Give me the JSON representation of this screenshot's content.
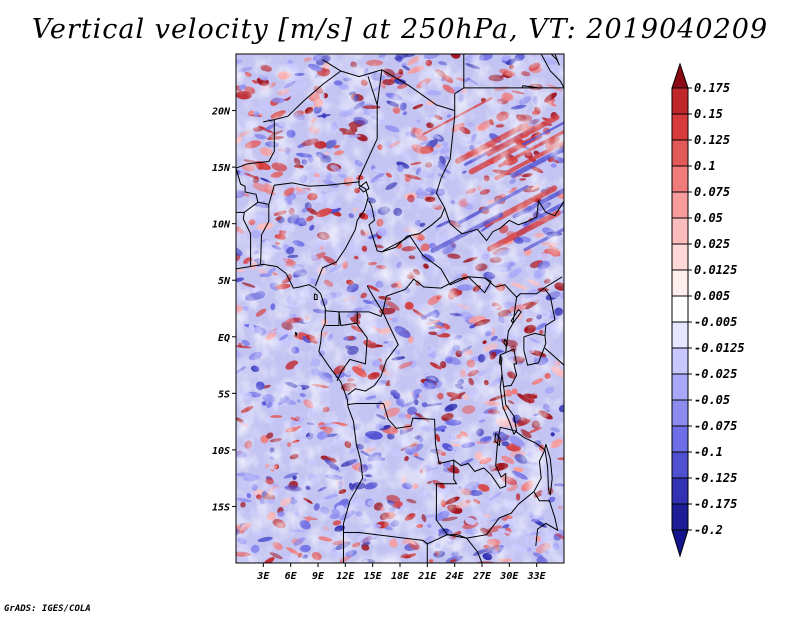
{
  "title": "Vertical velocity [m/s] at 250hPa, VT: 2019040209",
  "credit": "GrADS: IGES/COLA",
  "map": {
    "lat_range": [
      -20,
      25
    ],
    "lon_range": [
      0,
      36
    ],
    "lat_ticks": [
      {
        "value": 20,
        "label": "20N"
      },
      {
        "value": 15,
        "label": "15N"
      },
      {
        "value": 10,
        "label": "10N"
      },
      {
        "value": 5,
        "label": "5N"
      },
      {
        "value": 0,
        "label": "EQ"
      },
      {
        "value": -5,
        "label": "5S"
      },
      {
        "value": -10,
        "label": "10S"
      },
      {
        "value": -15,
        "label": "15S"
      }
    ],
    "lon_ticks": [
      {
        "value": 3,
        "label": "3E"
      },
      {
        "value": 6,
        "label": "6E"
      },
      {
        "value": 9,
        "label": "9E"
      },
      {
        "value": 12,
        "label": "12E"
      },
      {
        "value": 15,
        "label": "15E"
      },
      {
        "value": 18,
        "label": "18E"
      },
      {
        "value": 21,
        "label": "21E"
      },
      {
        "value": 24,
        "label": "24E"
      },
      {
        "value": 27,
        "label": "27E"
      },
      {
        "value": 30,
        "label": "30E"
      },
      {
        "value": 33,
        "label": "33E"
      }
    ]
  },
  "colorbar": {
    "levels": [
      {
        "label": "0.175",
        "color": "#a0141e"
      },
      {
        "label": "0.15",
        "color": "#c0272d"
      },
      {
        "label": "0.125",
        "color": "#d73c3c"
      },
      {
        "label": "0.1",
        "color": "#e45a5a"
      },
      {
        "label": "0.075",
        "color": "#ef7b7b"
      },
      {
        "label": "0.05",
        "color": "#f79c9c"
      },
      {
        "label": "0.025",
        "color": "#fcbcbc"
      },
      {
        "label": "0.0125",
        "color": "#ffd8d8"
      },
      {
        "label": "0.005",
        "color": "#ffeeee"
      },
      {
        "label": "-0.005",
        "color": "#ffffff"
      },
      {
        "label": "-0.0125",
        "color": "#e6e6ff"
      },
      {
        "label": "-0.025",
        "color": "#c8c8ff"
      },
      {
        "label": "-0.05",
        "color": "#a8a8fa"
      },
      {
        "label": "-0.075",
        "color": "#8c8cf0"
      },
      {
        "label": "-0.1",
        "color": "#6e6ee6"
      },
      {
        "label": "-0.125",
        "color": "#5050d2"
      },
      {
        "label": "-0.175",
        "color": "#3232b4"
      },
      {
        "label": "-0.2",
        "color": "#1e1e96"
      }
    ],
    "bottom_color": "#14148c",
    "top_color": "#8c0a14"
  },
  "colors": {
    "coast": "#000000",
    "neutral": "#d8d8f0"
  }
}
